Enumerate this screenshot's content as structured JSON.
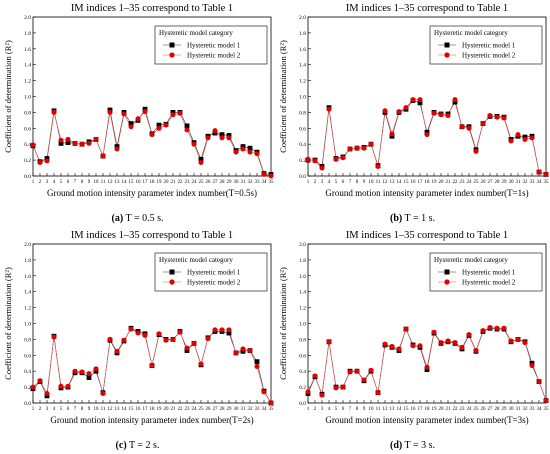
{
  "chart_data": [
    {
      "type": "line",
      "panel_label": "(a)",
      "caption": "T = 0.5 s.",
      "title": "IM indices 1–35 correspond to Table 1",
      "xlabel": "Ground motion intensity parameter index number(T=0.5s)",
      "ylabel": "Coefficient of determination (R²)",
      "xlim": [
        1,
        35
      ],
      "ylim": [
        0,
        2.0
      ],
      "yticks": [
        0,
        0.2,
        0.4,
        0.6,
        0.8,
        1.0,
        1.2,
        1.4,
        1.6,
        1.8,
        2.0
      ],
      "x": [
        1,
        2,
        3,
        4,
        5,
        6,
        7,
        8,
        9,
        10,
        11,
        12,
        13,
        14,
        15,
        16,
        17,
        18,
        19,
        20,
        21,
        22,
        23,
        24,
        25,
        26,
        27,
        28,
        29,
        30,
        31,
        32,
        33,
        34,
        35
      ],
      "legend_title": "Hysteretic model category",
      "legend_position": "top-right",
      "series": [
        {
          "name": "Hysteretic model 1",
          "color": "#000000",
          "marker": "square",
          "values": [
            0.38,
            0.18,
            0.22,
            0.82,
            0.41,
            0.42,
            0.41,
            0.4,
            0.43,
            0.46,
            0.25,
            0.83,
            0.37,
            0.8,
            0.66,
            0.7,
            0.84,
            0.53,
            0.64,
            0.65,
            0.8,
            0.8,
            0.63,
            0.42,
            0.21,
            0.5,
            0.54,
            0.52,
            0.51,
            0.32,
            0.37,
            0.35,
            0.3,
            0.03,
            0.02
          ]
        },
        {
          "name": "Hysteretic model 2",
          "color": "#e00000",
          "marker": "circle",
          "values": [
            0.39,
            0.17,
            0.19,
            0.8,
            0.45,
            0.46,
            0.41,
            0.4,
            0.41,
            0.46,
            0.25,
            0.8,
            0.34,
            0.78,
            0.62,
            0.72,
            0.81,
            0.52,
            0.6,
            0.64,
            0.77,
            0.79,
            0.58,
            0.4,
            0.17,
            0.48,
            0.57,
            0.48,
            0.48,
            0.3,
            0.34,
            0.3,
            0.28,
            0.02,
            0.0
          ]
        }
      ]
    },
    {
      "type": "line",
      "panel_label": "(b)",
      "caption": "T = 1 s.",
      "title": "IM indices 1–35 correspond to Table 1",
      "xlabel": "Ground motion intensity parameter index number(T=1s)",
      "ylabel": "Coefficient of determination (R²)",
      "xlim": [
        1,
        35
      ],
      "ylim": [
        0,
        2.0
      ],
      "yticks": [
        0,
        0.2,
        0.4,
        0.6,
        0.8,
        1.0,
        1.2,
        1.4,
        1.6,
        1.8,
        2.0
      ],
      "x": [
        1,
        2,
        3,
        4,
        5,
        6,
        7,
        8,
        9,
        10,
        11,
        12,
        13,
        14,
        15,
        16,
        17,
        18,
        19,
        20,
        21,
        22,
        23,
        24,
        25,
        26,
        27,
        28,
        29,
        30,
        31,
        32,
        33,
        34,
        35
      ],
      "legend_title": "Hysteretic model category",
      "legend_position": "top-right",
      "series": [
        {
          "name": "Hysteretic model 1",
          "color": "#000000",
          "marker": "square",
          "values": [
            0.2,
            0.2,
            0.12,
            0.86,
            0.22,
            0.24,
            0.34,
            0.35,
            0.36,
            0.4,
            0.13,
            0.8,
            0.5,
            0.8,
            0.84,
            0.95,
            0.92,
            0.55,
            0.8,
            0.78,
            0.78,
            0.93,
            0.62,
            0.62,
            0.33,
            0.66,
            0.75,
            0.75,
            0.74,
            0.46,
            0.5,
            0.49,
            0.5,
            0.05,
            0.02
          ]
        },
        {
          "name": "Hysteretic model 2",
          "color": "#e00000",
          "marker": "circle",
          "values": [
            0.21,
            0.19,
            0.1,
            0.84,
            0.21,
            0.23,
            0.34,
            0.35,
            0.35,
            0.4,
            0.12,
            0.82,
            0.53,
            0.81,
            0.86,
            0.96,
            0.96,
            0.52,
            0.79,
            0.77,
            0.76,
            0.96,
            0.62,
            0.6,
            0.31,
            0.66,
            0.76,
            0.74,
            0.73,
            0.44,
            0.52,
            0.46,
            0.48,
            0.05,
            0.02
          ]
        }
      ]
    },
    {
      "type": "line",
      "panel_label": "(c)",
      "caption": "T = 2 s.",
      "title": "IM indices 1–35 correspond to Table 1",
      "xlabel": "Ground motion intensity parameter index number(T=2s)",
      "ylabel": "Coefficient of determination (R²)",
      "xlim": [
        1,
        35
      ],
      "ylim": [
        0,
        2.0
      ],
      "yticks": [
        0,
        0.2,
        0.4,
        0.6,
        0.8,
        1.0,
        1.2,
        1.4,
        1.6,
        1.8,
        2.0
      ],
      "x": [
        1,
        2,
        3,
        4,
        5,
        6,
        7,
        8,
        9,
        10,
        11,
        12,
        13,
        14,
        15,
        16,
        17,
        18,
        19,
        20,
        21,
        22,
        23,
        24,
        25,
        26,
        27,
        28,
        29,
        30,
        31,
        32,
        33,
        34,
        35
      ],
      "legend_title": "Hysteretic model category",
      "legend_position": "top-right",
      "series": [
        {
          "name": "Hysteretic model 1",
          "color": "#000000",
          "marker": "square",
          "values": [
            0.18,
            0.27,
            0.09,
            0.84,
            0.19,
            0.2,
            0.38,
            0.38,
            0.32,
            0.4,
            0.13,
            0.79,
            0.63,
            0.78,
            0.94,
            0.9,
            0.87,
            0.47,
            0.86,
            0.8,
            0.8,
            0.9,
            0.66,
            0.75,
            0.48,
            0.82,
            0.9,
            0.9,
            0.88,
            0.63,
            0.65,
            0.66,
            0.52,
            0.15,
            0.0
          ]
        },
        {
          "name": "Hysteretic model 2",
          "color": "#e00000",
          "marker": "circle",
          "values": [
            0.2,
            0.28,
            0.12,
            0.83,
            0.21,
            0.21,
            0.4,
            0.39,
            0.37,
            0.43,
            0.12,
            0.8,
            0.65,
            0.79,
            0.93,
            0.88,
            0.85,
            0.47,
            0.87,
            0.79,
            0.8,
            0.89,
            0.69,
            0.75,
            0.49,
            0.81,
            0.92,
            0.92,
            0.92,
            0.63,
            0.68,
            0.66,
            0.46,
            0.14,
            0.0
          ]
        }
      ]
    },
    {
      "type": "line",
      "panel_label": "(d)",
      "caption": "T = 3 s.",
      "title": "IM indices 1–35 correspond to Table 1",
      "xlabel": "Ground motion intensity parameter index number(T=3s)",
      "ylabel": "Coefficient of determination (R²)",
      "xlim": [
        1,
        35
      ],
      "ylim": [
        0,
        2.0
      ],
      "yticks": [
        0,
        0.2,
        0.4,
        0.6,
        0.8,
        1.0,
        1.2,
        1.4,
        1.6,
        1.8,
        2.0
      ],
      "x": [
        1,
        2,
        3,
        4,
        5,
        6,
        7,
        8,
        9,
        10,
        11,
        12,
        13,
        14,
        15,
        16,
        17,
        18,
        19,
        20,
        21,
        22,
        23,
        24,
        25,
        26,
        27,
        28,
        29,
        30,
        31,
        32,
        33,
        34,
        35
      ],
      "legend_title": "Hysteretic model category",
      "legend_position": "top-right",
      "series": [
        {
          "name": "Hysteretic model 1",
          "color": "#000000",
          "marker": "square",
          "values": [
            0.12,
            0.33,
            0.11,
            0.77,
            0.2,
            0.2,
            0.4,
            0.4,
            0.28,
            0.4,
            0.13,
            0.73,
            0.7,
            0.66,
            0.93,
            0.73,
            0.7,
            0.42,
            0.88,
            0.75,
            0.77,
            0.75,
            0.68,
            0.85,
            0.65,
            0.9,
            0.94,
            0.93,
            0.93,
            0.77,
            0.8,
            0.77,
            0.5,
            0.27,
            0.03
          ]
        },
        {
          "name": "Hysteretic model 2",
          "color": "#e00000",
          "marker": "circle",
          "values": [
            0.14,
            0.34,
            0.1,
            0.77,
            0.19,
            0.2,
            0.39,
            0.4,
            0.29,
            0.41,
            0.13,
            0.74,
            0.71,
            0.68,
            0.93,
            0.72,
            0.72,
            0.45,
            0.89,
            0.76,
            0.78,
            0.76,
            0.7,
            0.86,
            0.66,
            0.91,
            0.95,
            0.94,
            0.94,
            0.78,
            0.8,
            0.76,
            0.47,
            0.27,
            0.03
          ]
        }
      ]
    }
  ]
}
